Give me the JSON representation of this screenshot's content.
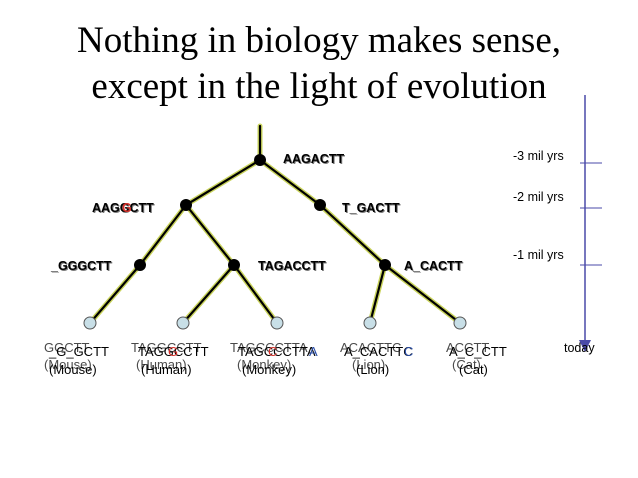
{
  "title": {
    "line1": "Nothing in biology makes sense,",
    "line2": "except in the light of evolution"
  },
  "tree": {
    "root": "AAGACTT",
    "left_internal": "AAGGCTT",
    "right_internal": "T_GACTT",
    "node_mouse_ancestor": "_GGGCTT",
    "node_primate_ancestor": "TAGACCTT",
    "node_carnivore_ancestor": "A_CACTT"
  },
  "leaves": [
    {
      "name": "mouse",
      "seq": "_G_GCTT",
      "ghost_seq": "GGCTT",
      "label": "(Mouse)"
    },
    {
      "name": "human",
      "seq": "TAGGCCTT",
      "ghost_seq": "TAGGCCTT",
      "label": "(Human)"
    },
    {
      "name": "monkey",
      "seq": "TAGCCCTTA",
      "ghost_seq": "TAGCCCTTA",
      "label": "(Monkey)"
    },
    {
      "name": "lion",
      "seq": "A_CACTTC",
      "ghost_seq": "ACACTTC",
      "label": "(Lion)"
    },
    {
      "name": "cat",
      "seq": "A_C_CTT",
      "ghost_seq": "ACCTT",
      "label": "(Cat)"
    }
  ],
  "timeline": {
    "labels": [
      "-3 mil yrs",
      "-2 mil yrs",
      "-1 mil yrs",
      "today"
    ]
  },
  "colors": {
    "branch": "#000000",
    "branch_glow": "#c9d35c",
    "mutation": "#d8302a",
    "insertion": "#2b4fa8",
    "leaf_node": "#c8dfe7",
    "timeline": "#4a4aa8"
  }
}
